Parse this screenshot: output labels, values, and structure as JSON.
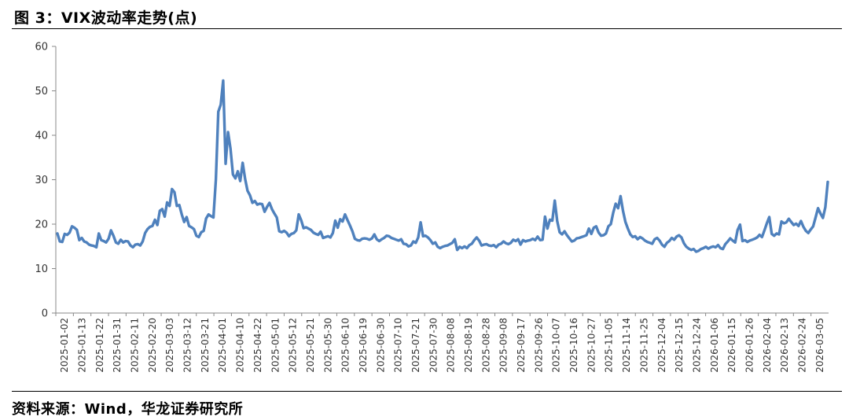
{
  "figure": {
    "title": "图 3：VIX波动率走势(点)",
    "source": "资料来源：Wind，华龙证券研究所"
  },
  "colors": {
    "line": "#4F81BD",
    "axis": "#888888",
    "text": "#333333"
  },
  "chart_data": {
    "type": "line",
    "title": "",
    "xlabel": "",
    "ylabel": "",
    "ylim": [
      0,
      60
    ],
    "yticks": [
      0,
      10,
      20,
      30,
      40,
      50,
      60
    ],
    "grid": false,
    "legend": "none",
    "x_tick_labels": [
      "2025-01-02",
      "2025-01-13",
      "2025-01-22",
      "2025-01-31",
      "2025-02-11",
      "2025-02-20",
      "2025-03-03",
      "2025-03-12",
      "2025-03-21",
      "2025-04-01",
      "2025-04-10",
      "2025-04-22",
      "2025-05-01",
      "2025-05-12",
      "2025-05-21",
      "2025-05-30",
      "2025-06-10",
      "2025-06-19",
      "2025-06-30",
      "2025-07-10",
      "2025-07-21",
      "2025-07-30",
      "2025-08-08",
      "2025-08-19",
      "2025-08-28",
      "2025-09-08",
      "2025-09-17",
      "2025-09-26",
      "2025-10-07",
      "2025-10-16",
      "2025-10-27",
      "2025-11-05",
      "2025-11-14",
      "2025-11-25",
      "2025-12-04",
      "2025-12-15",
      "2025-12-24",
      "2026-01-06",
      "2026-01-15",
      "2026-01-26",
      "2026-02-04",
      "2026-02-13",
      "2026-02-24",
      "2026-03-05"
    ],
    "series": [
      {
        "values": [
          17.9,
          16.1,
          16.0,
          17.8,
          17.6,
          18.1,
          19.5,
          19.2,
          18.7,
          16.4,
          16.9,
          16.1,
          15.9,
          15.4,
          15.2,
          15.1,
          14.8,
          17.9,
          16.4,
          16.2,
          15.9,
          16.7,
          18.6,
          17.4,
          15.9,
          15.6,
          16.5,
          15.9,
          16.2,
          16.1,
          15.2,
          14.8,
          15.4,
          15.5,
          15.2,
          16.1,
          18.0,
          18.9,
          19.4,
          19.6,
          21.0,
          19.8,
          23.0,
          23.4,
          21.7,
          24.9,
          24.1,
          27.9,
          27.2,
          24.1,
          24.3,
          22.2,
          20.5,
          21.6,
          19.6,
          19.3,
          18.9,
          17.4,
          17.1,
          18.2,
          18.5,
          21.3,
          22.2,
          21.8,
          21.5,
          30.0,
          45.3,
          46.9,
          52.3,
          33.6,
          40.7,
          37.0,
          31.2,
          30.3,
          31.9,
          29.7,
          33.8,
          30.2,
          27.5,
          26.5,
          24.8,
          25.2,
          24.4,
          24.6,
          24.5,
          22.8,
          23.9,
          24.8,
          23.4,
          22.4,
          21.5,
          18.4,
          18.2,
          18.5,
          18.1,
          17.3,
          17.8,
          18.0,
          18.6,
          22.2,
          20.9,
          19.1,
          19.3,
          19.0,
          18.7,
          18.1,
          17.8,
          17.6,
          18.3,
          16.9,
          17.1,
          17.3,
          17.0,
          18.0,
          20.8,
          19.2,
          21.1,
          20.6,
          22.2,
          20.9,
          19.7,
          18.4,
          16.7,
          16.4,
          16.3,
          16.7,
          16.8,
          16.7,
          16.5,
          16.8,
          17.7,
          16.6,
          16.2,
          16.6,
          16.9,
          17.4,
          17.3,
          16.9,
          16.7,
          16.5,
          16.3,
          16.6,
          15.6,
          15.5,
          15.0,
          15.2,
          16.1,
          15.8,
          17.0,
          20.4,
          17.3,
          17.4,
          17.0,
          16.4,
          15.6,
          15.9,
          14.9,
          14.6,
          14.9,
          15.1,
          15.2,
          15.5,
          15.8,
          16.6,
          14.2,
          14.9,
          14.6,
          15.0,
          14.6,
          15.3,
          15.6,
          16.4,
          17.0,
          16.3,
          15.2,
          15.4,
          15.5,
          15.2,
          15.1,
          15.3,
          14.8,
          15.4,
          15.6,
          16.1,
          15.7,
          15.5,
          15.8,
          16.5,
          16.2,
          16.6,
          15.4,
          16.4,
          16.1,
          16.3,
          16.4,
          16.7,
          16.4,
          17.2,
          16.4,
          16.5,
          21.7,
          19.0,
          21.0,
          20.8,
          25.3,
          20.7,
          18.2,
          17.7,
          18.4,
          17.5,
          16.8,
          16.1,
          16.3,
          16.8,
          16.9,
          17.1,
          17.3,
          17.5,
          19.0,
          17.8,
          19.2,
          19.5,
          18.1,
          17.4,
          17.5,
          17.9,
          19.5,
          20.0,
          22.6,
          24.6,
          23.6,
          26.3,
          23.0,
          20.5,
          19.0,
          17.7,
          17.1,
          17.3,
          16.6,
          17.1,
          16.8,
          16.3,
          16.0,
          15.8,
          15.6,
          16.6,
          16.9,
          16.3,
          15.4,
          14.9,
          15.8,
          16.2,
          16.9,
          16.5,
          17.2,
          17.5,
          17.0,
          15.7,
          14.9,
          14.5,
          14.2,
          14.4,
          13.8,
          14.0,
          14.4,
          14.6,
          14.9,
          14.5,
          14.8,
          15.0,
          14.8,
          15.3,
          14.6,
          14.4,
          15.5,
          16.1,
          16.8,
          16.3,
          15.9,
          18.7,
          19.9,
          16.2,
          16.4,
          16.0,
          16.3,
          16.5,
          16.7,
          17.0,
          17.6,
          17.1,
          18.6,
          20.2,
          21.6,
          17.8,
          17.4,
          17.9,
          17.7,
          20.6,
          20.2,
          20.4,
          21.2,
          20.5,
          19.8,
          20.1,
          19.6,
          20.7,
          19.4,
          18.5,
          18.0,
          18.8,
          19.5,
          21.5,
          23.6,
          22.4,
          21.4,
          23.8,
          29.5
        ]
      }
    ]
  }
}
